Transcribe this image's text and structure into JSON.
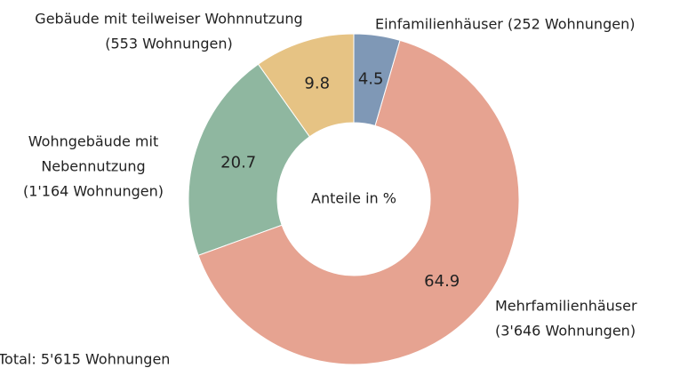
{
  "chart_data": {
    "type": "donut",
    "categories": [
      [
        "Einfamilienhäuser (252 Wohnungen)"
      ],
      [
        "Mehrfamilienhäuser",
        "(3'646 Wohnungen)"
      ],
      [
        "Wohngebäude mit",
        "Nebennutzung",
        "(1'164 Wohnungen)"
      ],
      [
        "Gebäude mit teilweiser Wohnnutzung",
        "(553 Wohnungen)"
      ]
    ],
    "values": [
      4.5,
      64.9,
      20.7,
      9.8
    ],
    "colors": [
      "#7f98b6",
      "#e6a391",
      "#8fb7a0",
      "#e6c384"
    ],
    "center_label": "Anteile in %",
    "footnote": "Total: 5'615 Wohnungen"
  }
}
